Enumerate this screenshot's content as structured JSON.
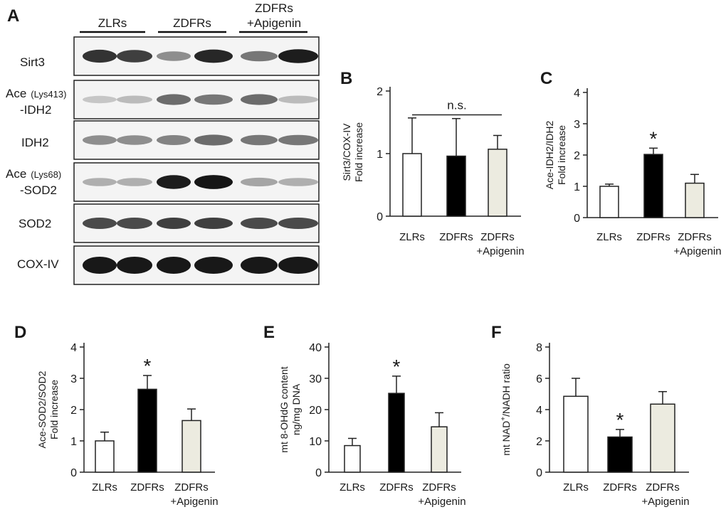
{
  "panels": {
    "A": "A",
    "B": "B",
    "C": "C",
    "D": "D",
    "E": "E",
    "F": "F"
  },
  "blot": {
    "groups": [
      {
        "line1": "ZLRs",
        "line2": ""
      },
      {
        "line1": "ZDFRs",
        "line2": ""
      },
      {
        "line1": "ZDFRs",
        "line2": "+Apigenin"
      }
    ],
    "rows": [
      {
        "label1": "Sirt3",
        "label1_small": "",
        "label2": "",
        "intensities": [
          0.85,
          0.8,
          0.45,
          0.9,
          0.55,
          0.95
        ]
      },
      {
        "label1": "Ace",
        "label1_small": "(Lys413)",
        "label2": "-IDH2",
        "intensities": [
          0.2,
          0.25,
          0.6,
          0.55,
          0.6,
          0.25
        ]
      },
      {
        "label1": "IDH2",
        "label1_small": "",
        "label2": "",
        "intensities": [
          0.45,
          0.45,
          0.5,
          0.6,
          0.55,
          0.55
        ]
      },
      {
        "label1": "Ace",
        "label1_small": "(Lys68)",
        "label2": "-SOD2",
        "intensities": [
          0.3,
          0.3,
          0.95,
          0.98,
          0.35,
          0.3
        ]
      },
      {
        "label1": "SOD2",
        "label1_small": "",
        "label2": "",
        "intensities": [
          0.75,
          0.75,
          0.8,
          0.8,
          0.75,
          0.75
        ]
      },
      {
        "label1": "COX-IV",
        "label1_small": "",
        "label2": "",
        "intensities": [
          0.97,
          0.97,
          0.97,
          0.97,
          0.97,
          0.97
        ]
      }
    ]
  },
  "colors": {
    "zlrs": "#ffffff",
    "zdfrs": "#000000",
    "apigenin": "#ecebe0",
    "band": "#111111"
  },
  "chart_data": [
    {
      "panel": "B",
      "type": "bar",
      "categories": [
        [
          "ZLRs"
        ],
        [
          "ZDFRs"
        ],
        [
          "ZDFRs",
          "+Apigenin"
        ]
      ],
      "values": [
        1.0,
        0.96,
        1.07
      ],
      "errors": [
        0.57,
        0.6,
        0.22
      ],
      "ylabel": [
        "Sirt3/COX-IV",
        "Fold increase"
      ],
      "ylim": [
        0,
        2
      ],
      "yticks": [
        0,
        1,
        2
      ],
      "significance": [],
      "annotation": "n.s."
    },
    {
      "panel": "C",
      "type": "bar",
      "categories": [
        [
          "ZLRs"
        ],
        [
          "ZDFRs"
        ],
        [
          "ZDFRs",
          "+Apigenin"
        ]
      ],
      "values": [
        1.0,
        2.02,
        1.1
      ],
      "errors": [
        0.07,
        0.2,
        0.28
      ],
      "ylabel": [
        "Ace-IDH2/IDH2",
        "Fold increase"
      ],
      "ylim": [
        0,
        4
      ],
      "yticks": [
        0,
        1,
        2,
        3,
        4
      ],
      "significance": [
        "",
        "*",
        ""
      ],
      "annotation": ""
    },
    {
      "panel": "D",
      "type": "bar",
      "categories": [
        [
          "ZLRs"
        ],
        [
          "ZDFRs"
        ],
        [
          "ZDFRs",
          "+Apigenin"
        ]
      ],
      "values": [
        1.0,
        2.65,
        1.65
      ],
      "errors": [
        0.28,
        0.44,
        0.37
      ],
      "ylabel": [
        "Ace-SOD2/SOD2",
        "Fold increase"
      ],
      "ylim": [
        0,
        4
      ],
      "yticks": [
        0,
        1,
        2,
        3,
        4
      ],
      "significance": [
        "",
        "*",
        ""
      ],
      "annotation": ""
    },
    {
      "panel": "E",
      "type": "bar",
      "categories": [
        [
          "ZLRs"
        ],
        [
          "ZDFRs"
        ],
        [
          "ZDFRs",
          "+Apigenin"
        ]
      ],
      "values": [
        8.5,
        25.2,
        14.5
      ],
      "errors": [
        2.3,
        5.5,
        4.5
      ],
      "ylabel": [
        "mt 8-OHdG content",
        "ng/mg DNA"
      ],
      "ylim": [
        0,
        40
      ],
      "yticks": [
        0,
        10,
        20,
        30,
        40
      ],
      "significance": [
        "",
        "*",
        ""
      ],
      "annotation": ""
    },
    {
      "panel": "F",
      "type": "bar",
      "categories": [
        [
          "ZLRs"
        ],
        [
          "ZDFRs"
        ],
        [
          "ZDFRs",
          "+Apigenin"
        ]
      ],
      "values": [
        4.85,
        2.25,
        4.35
      ],
      "errors": [
        1.15,
        0.48,
        0.8
      ],
      "ylabel": [
        "mt NAD",
        "+",
        "/NADH ratio"
      ],
      "ylim": [
        0,
        8
      ],
      "yticks": [
        0,
        2,
        4,
        6,
        8
      ],
      "significance": [
        "",
        "*",
        ""
      ],
      "annotation": ""
    }
  ]
}
